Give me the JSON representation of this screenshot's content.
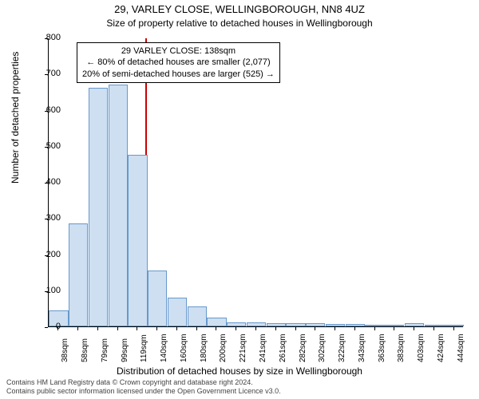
{
  "chart": {
    "type": "histogram",
    "title": "29, VARLEY CLOSE, WELLINGBOROUGH, NN8 4UZ",
    "subtitle": "Size of property relative to detached houses in Wellingborough",
    "ylabel": "Number of detached properties",
    "xlabel": "Distribution of detached houses by size in Wellingborough",
    "ylim": [
      0,
      800
    ],
    "ytick_step": 100,
    "yticks": [
      0,
      100,
      200,
      300,
      400,
      500,
      600,
      700,
      800
    ],
    "categories": [
      "38sqm",
      "58sqm",
      "79sqm",
      "99sqm",
      "119sqm",
      "140sqm",
      "160sqm",
      "180sqm",
      "200sqm",
      "221sqm",
      "241sqm",
      "261sqm",
      "282sqm",
      "302sqm",
      "322sqm",
      "343sqm",
      "363sqm",
      "383sqm",
      "403sqm",
      "424sqm",
      "444sqm"
    ],
    "values": [
      45,
      285,
      660,
      670,
      475,
      155,
      80,
      55,
      25,
      12,
      10,
      8,
      8,
      8,
      6,
      6,
      0,
      4,
      8,
      0,
      0
    ],
    "bar_fill": "#cedff2",
    "bar_stroke": "#6699cc",
    "bar_width": 0.98,
    "background_color": "#ffffff",
    "axis_color": "#000000",
    "ref_line_x_index": 4.9,
    "ref_line_color": "#cc0000",
    "annotation": {
      "lines": [
        "29 VARLEY CLOSE: 138sqm",
        "← 80% of detached houses are smaller (2,077)",
        "20% of semi-detached houses are larger (525) →"
      ]
    },
    "title_fontsize": 13,
    "subtitle_fontsize": 12,
    "label_fontsize": 12,
    "tick_fontsize": 11
  },
  "footer": {
    "line1": "Contains HM Land Registry data © Crown copyright and database right 2024.",
    "line2": "Contains public sector information licensed under the Open Government Licence v3.0."
  }
}
